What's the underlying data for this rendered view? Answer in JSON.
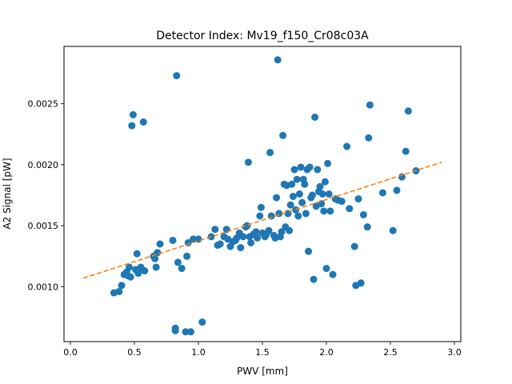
{
  "chart_data": {
    "type": "scatter",
    "title": "Detector Index: Mv19_f150_Cr08c03A",
    "xlabel": "PWV [mm]",
    "ylabel": "A2 Signal [pW]",
    "xlim": [
      -0.05,
      3.05
    ],
    "ylim": [
      0.00055,
      0.00297
    ],
    "x_ticks": [
      0.0,
      0.5,
      1.0,
      1.5,
      2.0,
      2.5,
      3.0
    ],
    "x_tick_labels": [
      "0.0",
      "0.5",
      "1.0",
      "1.5",
      "2.0",
      "2.5",
      "3.0"
    ],
    "y_ticks": [
      0.001,
      0.0015,
      0.002,
      0.0025
    ],
    "y_tick_labels": [
      "0.0010",
      "0.0015",
      "0.0020",
      "0.0025"
    ],
    "grid": false,
    "series": [
      {
        "name": "data",
        "kind": "scatter",
        "color": "#1f77b4",
        "points": [
          [
            0.34,
            0.00095
          ],
          [
            0.38,
            0.00096
          ],
          [
            0.4,
            0.00101
          ],
          [
            0.42,
            0.0011
          ],
          [
            0.44,
            0.00112
          ],
          [
            0.45,
            0.00109
          ],
          [
            0.46,
            0.00116
          ],
          [
            0.47,
            0.00108
          ],
          [
            0.48,
            0.00232
          ],
          [
            0.49,
            0.00241
          ],
          [
            0.51,
            0.00114
          ],
          [
            0.52,
            0.00127
          ],
          [
            0.53,
            0.00111
          ],
          [
            0.54,
            0.00113
          ],
          [
            0.55,
            0.00116
          ],
          [
            0.57,
            0.00235
          ],
          [
            0.58,
            0.00113
          ],
          [
            0.65,
            0.00125
          ],
          [
            0.66,
            0.00123
          ],
          [
            0.67,
            0.00116
          ],
          [
            0.68,
            0.00128
          ],
          [
            0.7,
            0.00135
          ],
          [
            0.8,
            0.00138
          ],
          [
            0.82,
            0.00064
          ],
          [
            0.82,
            0.00066
          ],
          [
            0.83,
            0.00273
          ],
          [
            0.84,
            0.0012
          ],
          [
            0.87,
            0.00115
          ],
          [
            0.9,
            0.00063
          ],
          [
            0.91,
            0.00125
          ],
          [
            0.92,
            0.00136
          ],
          [
            0.94,
            0.00063
          ],
          [
            0.96,
            0.00139
          ],
          [
            1.0,
            0.00139
          ],
          [
            1.03,
            0.00071
          ],
          [
            1.1,
            0.00141
          ],
          [
            1.13,
            0.00147
          ],
          [
            1.15,
            0.00134
          ],
          [
            1.17,
            0.00135
          ],
          [
            1.2,
            0.00141
          ],
          [
            1.22,
            0.00147
          ],
          [
            1.23,
            0.00139
          ],
          [
            1.25,
            0.00133
          ],
          [
            1.27,
            0.00137
          ],
          [
            1.29,
            0.00138
          ],
          [
            1.3,
            0.0014
          ],
          [
            1.32,
            0.00144
          ],
          [
            1.33,
            0.00132
          ],
          [
            1.35,
            0.00141
          ],
          [
            1.37,
            0.00149
          ],
          [
            1.38,
            0.0015
          ],
          [
            1.39,
            0.00202
          ],
          [
            1.4,
            0.00141
          ],
          [
            1.41,
            0.00136
          ],
          [
            1.43,
            0.00143
          ],
          [
            1.45,
            0.00145
          ],
          [
            1.46,
            0.0014
          ],
          [
            1.48,
            0.00158
          ],
          [
            1.49,
            0.00165
          ],
          [
            1.5,
            0.00144
          ],
          [
            1.52,
            0.00141
          ],
          [
            1.53,
            0.00143
          ],
          [
            1.55,
            0.00146
          ],
          [
            1.56,
            0.0021
          ],
          [
            1.57,
            0.00158
          ],
          [
            1.59,
            0.00142
          ],
          [
            1.6,
            0.0014
          ],
          [
            1.61,
            0.00173
          ],
          [
            1.62,
            0.00286
          ],
          [
            1.63,
            0.0016
          ],
          [
            1.64,
            0.00141
          ],
          [
            1.65,
            0.00145
          ],
          [
            1.66,
            0.00224
          ],
          [
            1.67,
            0.00184
          ],
          [
            1.68,
            0.00149
          ],
          [
            1.69,
            0.00183
          ],
          [
            1.7,
            0.0016
          ],
          [
            1.71,
            0.00146
          ],
          [
            1.72,
            0.00167
          ],
          [
            1.73,
            0.00184
          ],
          [
            1.74,
            0.00174
          ],
          [
            1.75,
            0.00196
          ],
          [
            1.76,
            0.00163
          ],
          [
            1.77,
            0.00188
          ],
          [
            1.78,
            0.00158
          ],
          [
            1.79,
            0.00176
          ],
          [
            1.8,
            0.00198
          ],
          [
            1.81,
            0.00169
          ],
          [
            1.82,
            0.00188
          ],
          [
            1.83,
            0.00184
          ],
          [
            1.84,
            0.0016
          ],
          [
            1.85,
            0.00196
          ],
          [
            1.86,
            0.00129
          ],
          [
            1.87,
            0.00198
          ],
          [
            1.88,
            0.00173
          ],
          [
            1.89,
            0.00175
          ],
          [
            1.9,
            0.00106
          ],
          [
            1.91,
            0.00239
          ],
          [
            1.92,
            0.00166
          ],
          [
            1.93,
            0.00196
          ],
          [
            1.94,
            0.00178
          ],
          [
            1.95,
            0.00182
          ],
          [
            1.96,
            0.00168
          ],
          [
            1.97,
            0.00176
          ],
          [
            1.98,
            0.00162
          ],
          [
            1.99,
            0.00186
          ],
          [
            2.0,
            0.00115
          ],
          [
            2.01,
            0.00201
          ],
          [
            2.02,
            0.00176
          ],
          [
            2.03,
            0.00162
          ],
          [
            2.05,
            0.0011
          ],
          [
            2.07,
            0.00172
          ],
          [
            2.09,
            0.00171
          ],
          [
            2.12,
            0.0017
          ],
          [
            2.16,
            0.00215
          ],
          [
            2.18,
            0.00164
          ],
          [
            2.22,
            0.00133
          ],
          [
            2.23,
            0.00101
          ],
          [
            2.25,
            0.00172
          ],
          [
            2.27,
            0.00103
          ],
          [
            2.29,
            0.00159
          ],
          [
            2.32,
            0.00149
          ],
          [
            2.33,
            0.00222
          ],
          [
            2.34,
            0.00249
          ],
          [
            2.44,
            0.00177
          ],
          [
            2.52,
            0.00146
          ],
          [
            2.55,
            0.00179
          ],
          [
            2.59,
            0.0019
          ],
          [
            2.62,
            0.00211
          ],
          [
            2.64,
            0.00244
          ],
          [
            2.7,
            0.00195
          ]
        ]
      },
      {
        "name": "fit",
        "kind": "line",
        "style": "dashed",
        "color": "#ff7f0e",
        "x": [
          0.1,
          2.9
        ],
        "y": [
          0.00107,
          0.00202
        ]
      }
    ]
  }
}
